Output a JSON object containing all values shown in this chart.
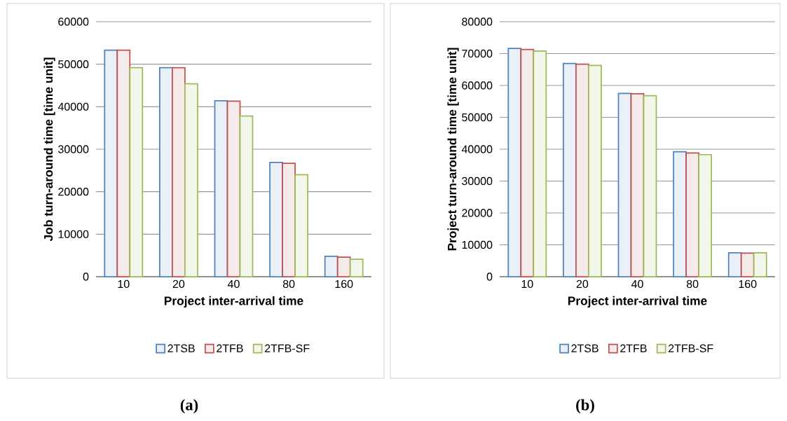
{
  "chart_data": [
    {
      "type": "bar",
      "categories": [
        "10",
        "20",
        "40",
        "80",
        "160"
      ],
      "xlabel": "Project inter-arrival time",
      "ylabel": "Job turn-around time [time unit]",
      "series": [
        {
          "name": "2TSB",
          "color": "#4f81bd",
          "values": [
            53300,
            49200,
            41400,
            26900,
            4800
          ]
        },
        {
          "name": "2TFB",
          "color": "#c0504d",
          "values": [
            53300,
            49200,
            41300,
            26700,
            4600
          ]
        },
        {
          "name": "2TFB-SF",
          "color": "#9bbb59",
          "values": [
            49200,
            45400,
            37800,
            24000,
            4100
          ]
        }
      ],
      "ylim": [
        0,
        60000
      ],
      "yticks": [
        0,
        10000,
        20000,
        30000,
        40000,
        50000,
        60000
      ],
      "grid": "y",
      "legend": "bottom",
      "annotations": [
        "(a)"
      ]
    },
    {
      "type": "bar",
      "categories": [
        "10",
        "20",
        "40",
        "80",
        "160"
      ],
      "xlabel": "Project inter-arrival time",
      "ylabel": "Project turn-around time [time unit]",
      "series": [
        {
          "name": "2TSB",
          "color": "#4f81bd",
          "values": [
            71600,
            66900,
            57500,
            39200,
            7500
          ]
        },
        {
          "name": "2TFB",
          "color": "#c0504d",
          "values": [
            71300,
            66700,
            57400,
            38800,
            7400
          ]
        },
        {
          "name": "2TFB-SF",
          "color": "#9bbb59",
          "values": [
            70800,
            66300,
            56800,
            38300,
            7500
          ]
        }
      ],
      "ylim": [
        0,
        80000
      ],
      "yticks": [
        0,
        10000,
        20000,
        30000,
        40000,
        50000,
        60000,
        70000,
        80000
      ],
      "grid": "y",
      "legend": "bottom",
      "annotations": [
        "(b)"
      ]
    }
  ]
}
